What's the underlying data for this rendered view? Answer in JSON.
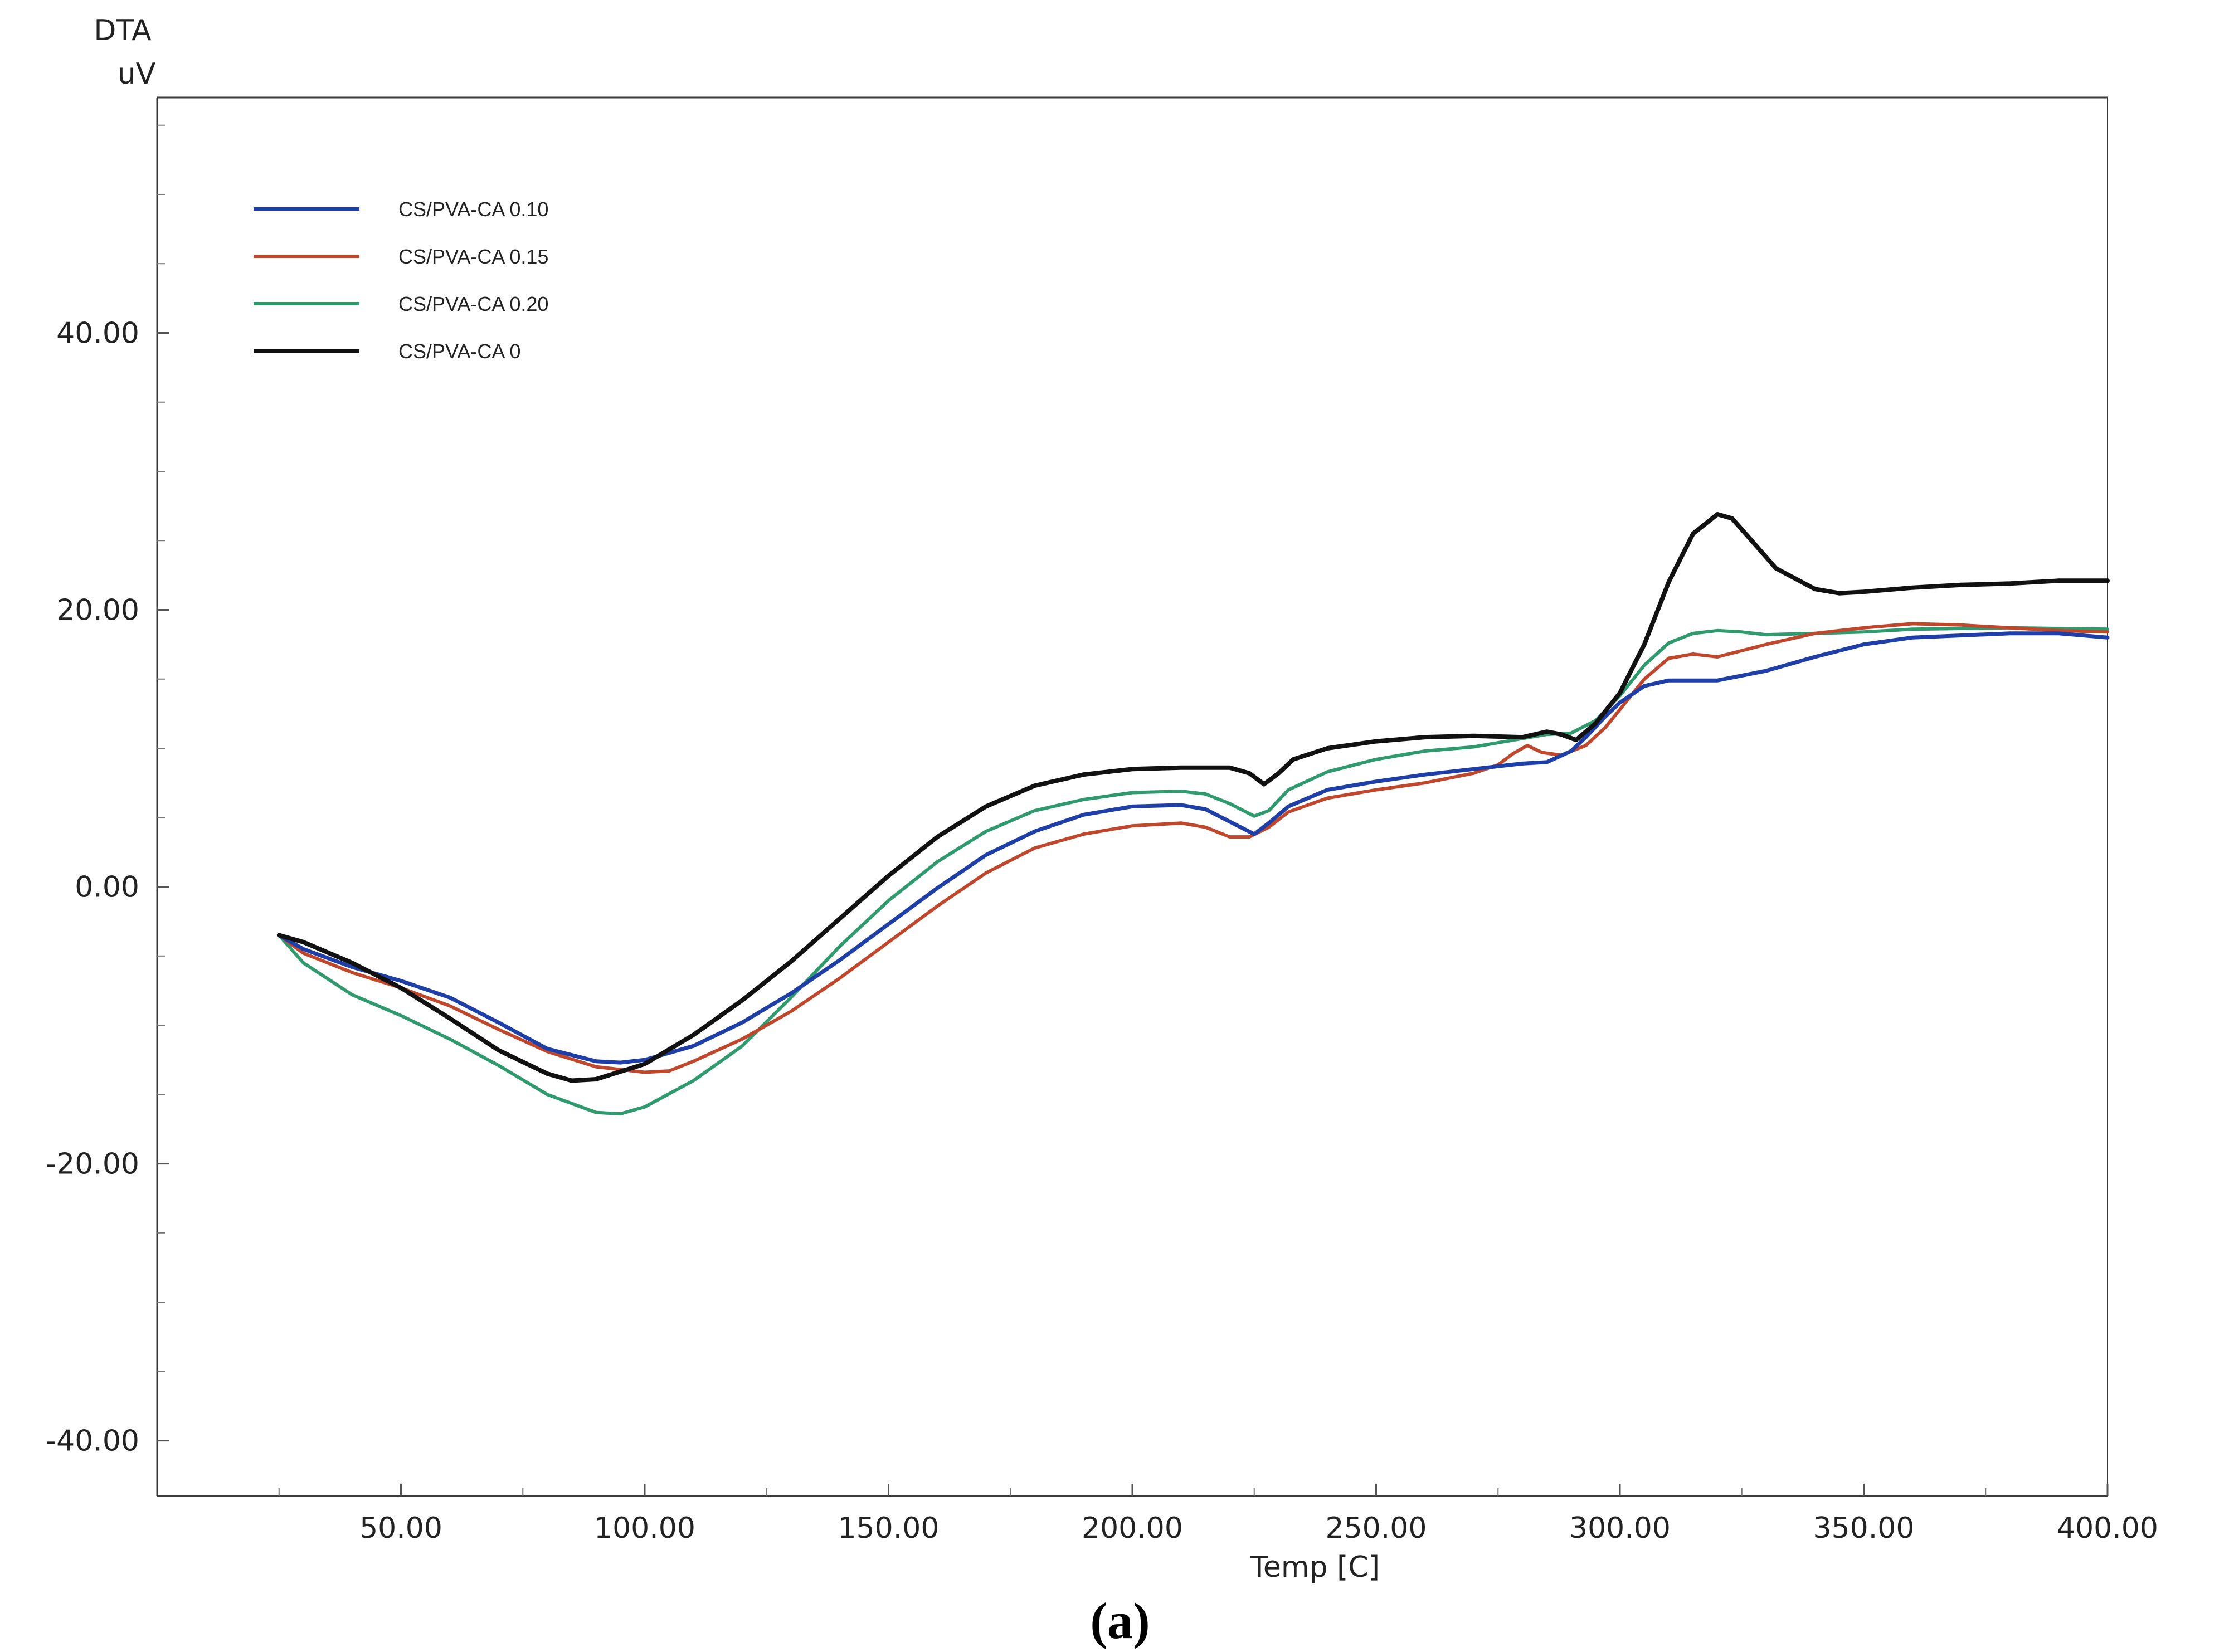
{
  "chart_data": {
    "type": "line",
    "title": "",
    "caption": "(a)",
    "ylabel_line1": "DTA",
    "ylabel_line2": "uV",
    "xlabel": "Temp [C]",
    "xlim": [
      0,
      400
    ],
    "ylim": [
      -44,
      57
    ],
    "xticks": [
      50,
      100,
      150,
      200,
      250,
      300,
      350,
      400
    ],
    "xtick_labels": [
      "50.00",
      "100.00",
      "150.00",
      "200.00",
      "250.00",
      "300.00",
      "350.00",
      "400.00"
    ],
    "yticks": [
      -40,
      -20,
      0,
      20,
      40
    ],
    "ytick_labels": [
      "-40.00",
      "-20.00",
      "0.00",
      "20.00",
      "40.00"
    ],
    "legend_position": "top-left",
    "grid": false,
    "series": [
      {
        "name": "CS/PVA-CA 0.10",
        "color": "#1f3fa8",
        "points": [
          [
            25,
            -3.5
          ],
          [
            30,
            -4.5
          ],
          [
            40,
            -5.8
          ],
          [
            50,
            -6.8
          ],
          [
            60,
            -8.0
          ],
          [
            70,
            -9.8
          ],
          [
            80,
            -11.7
          ],
          [
            90,
            -12.6
          ],
          [
            95,
            -12.7
          ],
          [
            100,
            -12.5
          ],
          [
            110,
            -11.5
          ],
          [
            120,
            -9.8
          ],
          [
            130,
            -7.7
          ],
          [
            140,
            -5.3
          ],
          [
            150,
            -2.7
          ],
          [
            160,
            -0.1
          ],
          [
            170,
            2.3
          ],
          [
            180,
            4.0
          ],
          [
            190,
            5.2
          ],
          [
            200,
            5.8
          ],
          [
            210,
            5.9
          ],
          [
            215,
            5.6
          ],
          [
            220,
            4.7
          ],
          [
            225,
            3.8
          ],
          [
            228,
            4.6
          ],
          [
            232,
            5.8
          ],
          [
            240,
            7.0
          ],
          [
            250,
            7.6
          ],
          [
            260,
            8.1
          ],
          [
            270,
            8.5
          ],
          [
            280,
            8.9
          ],
          [
            285,
            9.0
          ],
          [
            290,
            9.8
          ],
          [
            293,
            10.8
          ],
          [
            297,
            12.3
          ],
          [
            300,
            13.3
          ],
          [
            305,
            14.5
          ],
          [
            310,
            14.9
          ],
          [
            320,
            14.9
          ],
          [
            330,
            15.6
          ],
          [
            340,
            16.6
          ],
          [
            350,
            17.5
          ],
          [
            360,
            18.0
          ],
          [
            380,
            18.3
          ],
          [
            390,
            18.3
          ],
          [
            400,
            18.0
          ]
        ]
      },
      {
        "name": "CS/PVA-CA 0.15",
        "color": "#c0472c",
        "points": [
          [
            25,
            -3.5
          ],
          [
            30,
            -4.8
          ],
          [
            40,
            -6.2
          ],
          [
            50,
            -7.3
          ],
          [
            60,
            -8.6
          ],
          [
            70,
            -10.3
          ],
          [
            80,
            -11.9
          ],
          [
            90,
            -13.0
          ],
          [
            100,
            -13.4
          ],
          [
            105,
            -13.3
          ],
          [
            110,
            -12.6
          ],
          [
            120,
            -11.0
          ],
          [
            130,
            -9.0
          ],
          [
            140,
            -6.6
          ],
          [
            150,
            -4.0
          ],
          [
            160,
            -1.4
          ],
          [
            170,
            1.0
          ],
          [
            180,
            2.8
          ],
          [
            190,
            3.8
          ],
          [
            200,
            4.4
          ],
          [
            210,
            4.6
          ],
          [
            215,
            4.3
          ],
          [
            220,
            3.6
          ],
          [
            224,
            3.6
          ],
          [
            228,
            4.3
          ],
          [
            232,
            5.4
          ],
          [
            240,
            6.4
          ],
          [
            250,
            7.0
          ],
          [
            260,
            7.5
          ],
          [
            270,
            8.2
          ],
          [
            275,
            8.8
          ],
          [
            278,
            9.6
          ],
          [
            281,
            10.2
          ],
          [
            284,
            9.7
          ],
          [
            288,
            9.5
          ],
          [
            293,
            10.2
          ],
          [
            297,
            11.5
          ],
          [
            300,
            12.8
          ],
          [
            305,
            15.0
          ],
          [
            310,
            16.5
          ],
          [
            315,
            16.8
          ],
          [
            320,
            16.6
          ],
          [
            330,
            17.5
          ],
          [
            340,
            18.3
          ],
          [
            350,
            18.7
          ],
          [
            360,
            19.0
          ],
          [
            370,
            18.9
          ],
          [
            390,
            18.5
          ],
          [
            400,
            18.4
          ]
        ]
      },
      {
        "name": "CS/PVA-CA 0.20",
        "color": "#2e9a6e",
        "points": [
          [
            25,
            -3.5
          ],
          [
            30,
            -5.5
          ],
          [
            40,
            -7.8
          ],
          [
            50,
            -9.3
          ],
          [
            60,
            -11.0
          ],
          [
            70,
            -12.9
          ],
          [
            80,
            -15.0
          ],
          [
            90,
            -16.3
          ],
          [
            95,
            -16.4
          ],
          [
            100,
            -15.9
          ],
          [
            110,
            -14.0
          ],
          [
            120,
            -11.5
          ],
          [
            130,
            -8.0
          ],
          [
            140,
            -4.3
          ],
          [
            150,
            -1.0
          ],
          [
            160,
            1.8
          ],
          [
            170,
            4.0
          ],
          [
            180,
            5.5
          ],
          [
            190,
            6.3
          ],
          [
            200,
            6.8
          ],
          [
            210,
            6.9
          ],
          [
            215,
            6.7
          ],
          [
            220,
            6.0
          ],
          [
            225,
            5.1
          ],
          [
            228,
            5.5
          ],
          [
            232,
            7.0
          ],
          [
            240,
            8.3
          ],
          [
            250,
            9.2
          ],
          [
            260,
            9.8
          ],
          [
            270,
            10.1
          ],
          [
            280,
            10.7
          ],
          [
            285,
            11.0
          ],
          [
            290,
            11.1
          ],
          [
            295,
            12.0
          ],
          [
            300,
            13.8
          ],
          [
            305,
            16.0
          ],
          [
            310,
            17.6
          ],
          [
            315,
            18.3
          ],
          [
            320,
            18.5
          ],
          [
            325,
            18.4
          ],
          [
            330,
            18.2
          ],
          [
            340,
            18.3
          ],
          [
            350,
            18.4
          ],
          [
            360,
            18.6
          ],
          [
            380,
            18.7
          ],
          [
            400,
            18.6
          ]
        ]
      },
      {
        "name": "CS/PVA-CA 0",
        "color": "#111111",
        "points": [
          [
            25,
            -3.5
          ],
          [
            30,
            -4.0
          ],
          [
            40,
            -5.5
          ],
          [
            50,
            -7.3
          ],
          [
            60,
            -9.5
          ],
          [
            70,
            -11.8
          ],
          [
            80,
            -13.5
          ],
          [
            85,
            -14.0
          ],
          [
            90,
            -13.9
          ],
          [
            100,
            -12.8
          ],
          [
            110,
            -10.7
          ],
          [
            120,
            -8.2
          ],
          [
            130,
            -5.4
          ],
          [
            140,
            -2.3
          ],
          [
            150,
            0.8
          ],
          [
            160,
            3.6
          ],
          [
            170,
            5.8
          ],
          [
            180,
            7.3
          ],
          [
            190,
            8.1
          ],
          [
            200,
            8.5
          ],
          [
            210,
            8.6
          ],
          [
            220,
            8.6
          ],
          [
            224,
            8.2
          ],
          [
            227,
            7.4
          ],
          [
            230,
            8.2
          ],
          [
            233,
            9.2
          ],
          [
            240,
            10.0
          ],
          [
            250,
            10.5
          ],
          [
            260,
            10.8
          ],
          [
            270,
            10.9
          ],
          [
            280,
            10.8
          ],
          [
            285,
            11.2
          ],
          [
            288,
            11.0
          ],
          [
            291,
            10.6
          ],
          [
            295,
            11.8
          ],
          [
            300,
            14.0
          ],
          [
            305,
            17.5
          ],
          [
            310,
            22.0
          ],
          [
            315,
            25.5
          ],
          [
            320,
            26.9
          ],
          [
            323,
            26.6
          ],
          [
            327,
            25.0
          ],
          [
            332,
            23.0
          ],
          [
            340,
            21.5
          ],
          [
            345,
            21.2
          ],
          [
            350,
            21.3
          ],
          [
            360,
            21.6
          ],
          [
            370,
            21.8
          ],
          [
            380,
            21.9
          ],
          [
            390,
            22.1
          ],
          [
            400,
            22.1
          ]
        ]
      }
    ]
  }
}
